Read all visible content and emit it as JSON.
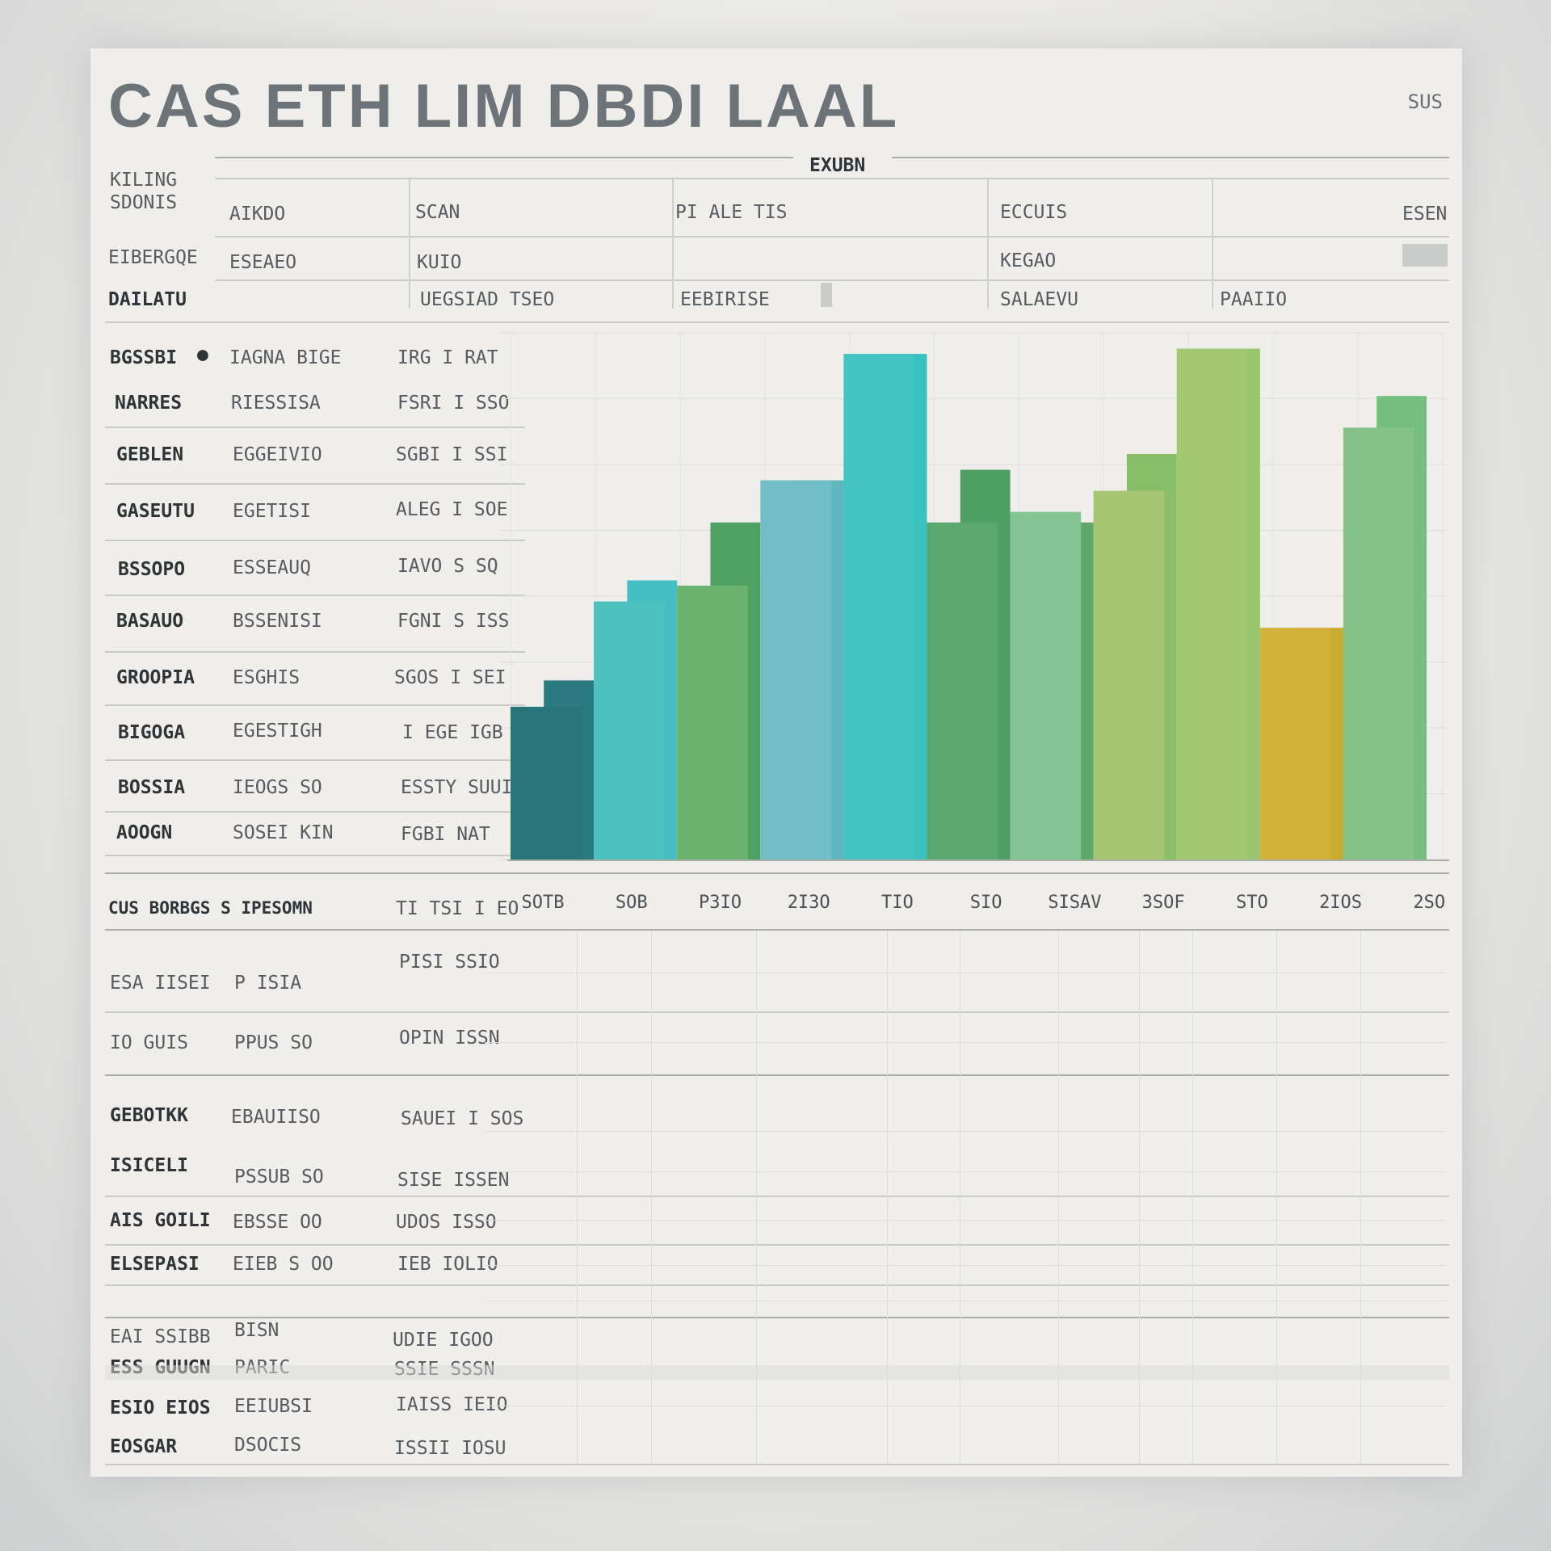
{
  "page": {
    "title": "CAS ETH LIM DBDI LAAL",
    "corner_label": "SUS"
  },
  "header_table": {
    "group_label": "EXUBN",
    "side_labels": [
      "KILING",
      "SDONIS",
      "EIBERGQE",
      "DAILATU"
    ],
    "columns": [
      "AIKDO",
      "SCAN",
      "PI ALE TIS",
      "ECCUIS",
      "ESEN"
    ],
    "row1": [
      "ESEAEO",
      "KUIO",
      "",
      "KEGAO",
      ""
    ],
    "row2": [
      "",
      "UEGSIAD TSEO",
      "EEBIRISE",
      "SALAEVU",
      "PAAIIO"
    ]
  },
  "left_table": {
    "rows": [
      [
        "BGSSBI",
        "IAGNA BIGE",
        "IRG I RAT"
      ],
      [
        "NARRES",
        "RIESSISA",
        "FSRI I SSO"
      ],
      [
        "GEBLEN",
        "EGGEIVIO",
        "SGBI I SSI"
      ],
      [
        "GASEUTU",
        "EGETISI",
        "ALEG I SOE"
      ],
      [
        "BSSOPO",
        "ESSEAUQ",
        "IAVO S SQ"
      ],
      [
        "BASAUO",
        "BSSENISI",
        "FGNI S ISS"
      ],
      [
        "GROOPIA",
        "ESGHIS",
        "SGOS I SEI"
      ],
      [
        "BIGOGA",
        "EGESTIGH",
        "I EGE IGB"
      ],
      [
        "BOSSIA",
        "IEOGS SO",
        "ESSTY SUUI"
      ],
      [
        "AOOGN",
        "SOSEI KIN",
        "FGBI NAT"
      ]
    ],
    "footer": [
      "CUS BORBGS S IPESOMN",
      "TI TSI I EO"
    ]
  },
  "chart_data": {
    "type": "bar",
    "title": "",
    "xlabel": "",
    "ylabel": "",
    "ylim": [
      0,
      100
    ],
    "grid": true,
    "legend": "none",
    "tick_labels": [
      "SOTB",
      "SOB",
      "P3IO",
      "2I3O",
      "TIO",
      "SIO",
      "SISAV",
      "3SOF",
      "STO",
      "2IOS",
      "2SO"
    ],
    "bars": [
      {
        "back": 34,
        "front": 29,
        "back_color": "#2a7a80",
        "front_color": "#277479"
      },
      {
        "back": 53,
        "front": 49,
        "back_color": "#45bec4",
        "front_color": "#4cc2c0"
      },
      {
        "back": 64,
        "front": 52,
        "back_color": "#50a064",
        "front_color": "#6ab26e"
      },
      {
        "back": 72,
        "front": 72,
        "back_color": "#5fb7c0",
        "front_color": "#71bec7"
      },
      {
        "back": 96,
        "front": 96,
        "back_color": "#38c1c0",
        "front_color": "#43c3c1"
      },
      {
        "back": 74,
        "front": 64,
        "back_color": "#4f9e64",
        "front_color": "#5aa870"
      },
      {
        "back": 64,
        "front": 66,
        "back_color": "#5ea86a",
        "front_color": "#85c495"
      },
      {
        "back": 77,
        "front": 70,
        "back_color": "#88bd6a",
        "front_color": "#a5c672"
      },
      {
        "back": 97,
        "front": 97,
        "back_color": "#98c66a",
        "front_color": "#a2c872"
      },
      {
        "back": 44,
        "front": 44,
        "back_color": "#c9ab30",
        "front_color": "#d2b03a"
      },
      {
        "back": 88,
        "front": 82,
        "back_color": "#76bd80",
        "front_color": "#84c28a"
      }
    ]
  },
  "lower_table": {
    "rows": [
      [
        "ESA IISEI",
        "P ISIA",
        "PISI SSIO"
      ],
      [
        "IO GUIS",
        "PPUS SO",
        "OPIN ISSN"
      ],
      [
        "GEBOTKK",
        "EBAUIISO",
        "SAUEI I SOS"
      ],
      [
        "ISICELI",
        "PSSUB SO",
        "SISE ISSEN"
      ],
      [
        "AIS GOILI",
        "EBSSE OO",
        "UDOS ISSO"
      ],
      [
        "ELSEPASI",
        "EIEB S OO",
        "IEB IOLIO"
      ],
      [
        "EAI SSIBB",
        "BISN",
        "UDIE IGOO"
      ],
      [
        "ESS GUUGN",
        "PARIC",
        "SSIE SSSN"
      ],
      [
        "ESIO EIOS",
        "EEIUBSI",
        "IAISS IEIO"
      ],
      [
        "EOSGAR",
        "DSOCIS",
        "ISSII IOSU"
      ]
    ]
  }
}
